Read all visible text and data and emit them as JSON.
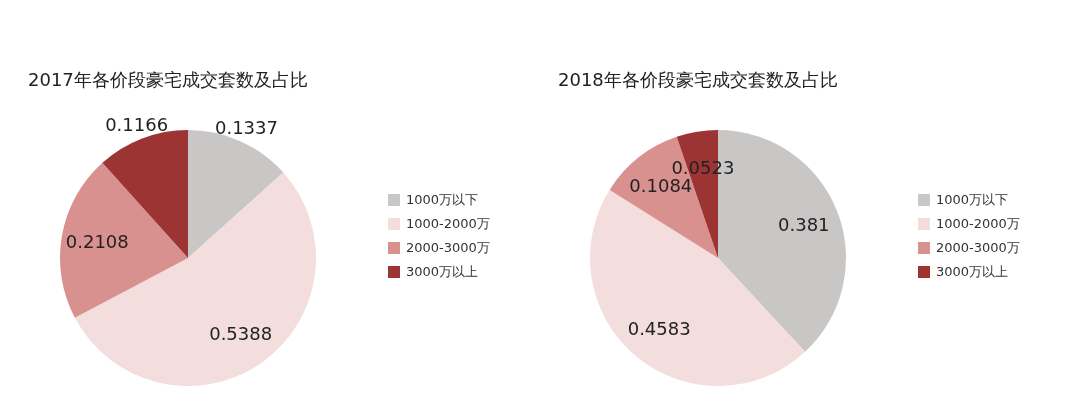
{
  "chart_data": [
    {
      "type": "pie",
      "title": "2017年各价段豪宅成交套数及占比",
      "categories": [
        "1000万以下",
        "1000-2000万",
        "2000-3000万",
        "3000万以上"
      ],
      "values": [
        0.1337,
        0.5388,
        0.2108,
        0.1166
      ],
      "colors": [
        "#c9c6c6",
        "#f3dddd",
        "#d9918f",
        "#9c3434"
      ],
      "data_labels": true,
      "legend": "right"
    },
    {
      "type": "pie",
      "title": "2018年各价段豪宅成交套数及占比",
      "categories": [
        "1000万以下",
        "1000-2000万",
        "2000-3000万",
        "3000万以上"
      ],
      "values": [
        0.381,
        0.4583,
        0.1084,
        0.0523
      ],
      "colors": [
        "#c9c6c6",
        "#f3dddd",
        "#d9918f",
        "#9c3434"
      ],
      "data_labels": true,
      "legend": "right"
    }
  ]
}
